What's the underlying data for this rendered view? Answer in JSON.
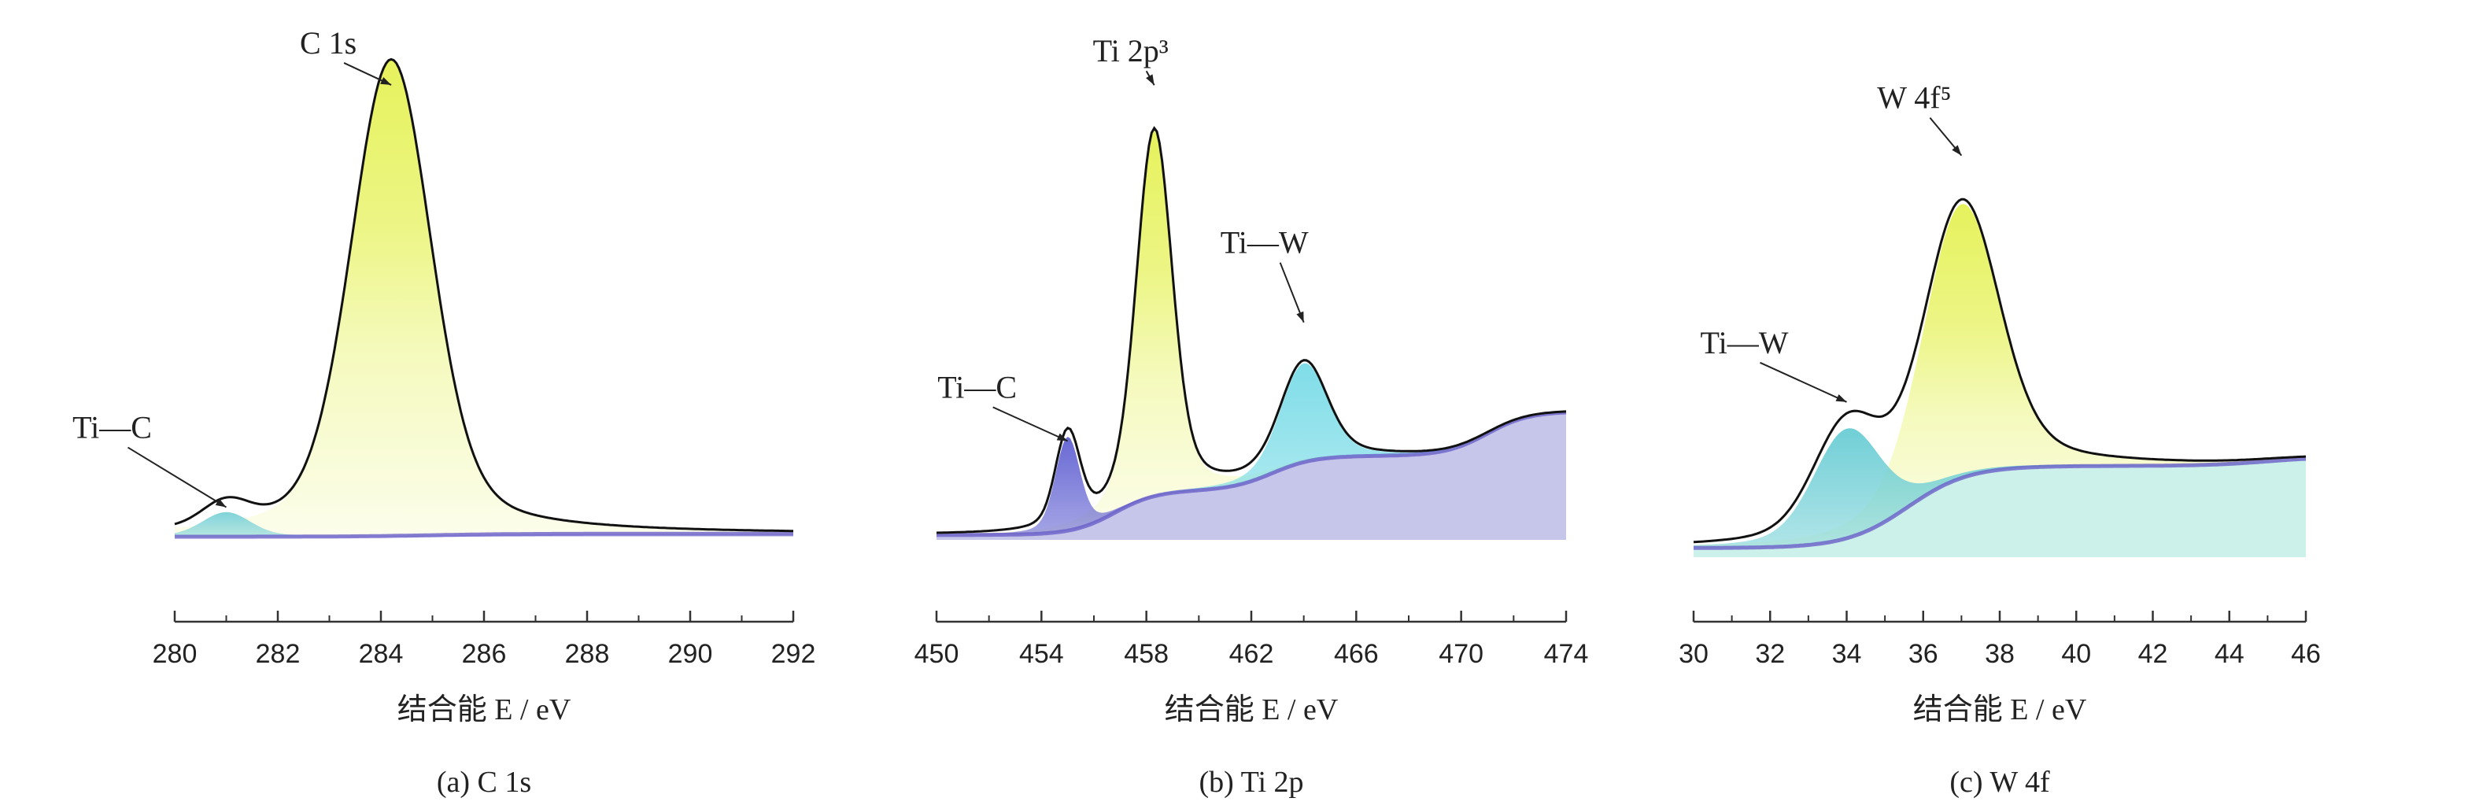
{
  "chart_data": [
    {
      "type": "area",
      "caption": "(a) C 1s",
      "xlabel": "结合能 E / eV",
      "xlim": [
        280,
        292
      ],
      "xticks": [
        280,
        282,
        284,
        286,
        288,
        290,
        292
      ],
      "annotations": [
        {
          "text": "C 1s",
          "x": 284.2,
          "y": 92
        },
        {
          "text": "Ti—C",
          "x": 281.0,
          "y": 6
        }
      ],
      "series": [
        {
          "type": "peak",
          "center": 284.2,
          "height": 97,
          "width": 0.75,
          "color": "#e6f25c",
          "fade": true
        },
        {
          "type": "peak",
          "center": 281.0,
          "height": 5,
          "width": 0.45,
          "color": "#7fd3d8",
          "fade": false
        }
      ],
      "background": {
        "base": 0,
        "steps": [
          [
            285.0,
            0.6
          ]
        ],
        "color": "#8f8fd6"
      },
      "envelope_color": "#111111"
    },
    {
      "type": "area",
      "caption": "(b) Ti 2p",
      "xlabel": "结合能 E / eV",
      "xlim": [
        450,
        474
      ],
      "xticks": [
        450,
        454,
        458,
        462,
        466,
        470,
        474
      ],
      "xtick_labels": [
        "450",
        "454",
        "458",
        "462",
        "466",
        "470",
        "474"
      ],
      "annotations": [
        {
          "text": "Ti 2p³",
          "x": 458.3,
          "y": 92
        },
        {
          "text": "Ti—W",
          "x": 464.0,
          "y": 44
        },
        {
          "text": "Ti—C",
          "x": 455.0,
          "y": 20
        }
      ],
      "series": [
        {
          "type": "peak",
          "center": 458.3,
          "height": 74,
          "width": 0.65,
          "color": "#e6f25c",
          "fade": true
        },
        {
          "type": "peak",
          "center": 464.0,
          "height": 20,
          "width": 0.85,
          "color": "#7fdde8",
          "fade": false
        },
        {
          "type": "peak",
          "center": 455.0,
          "height": 19,
          "width": 0.45,
          "color": "#5a5ad0",
          "fade": false
        }
      ],
      "background": {
        "base": 1,
        "steps": [
          [
            456.8,
            9
          ],
          [
            462.8,
            7
          ],
          [
            471.0,
            9
          ]
        ],
        "color": "#8080d0"
      },
      "envelope_color": "#111111"
    },
    {
      "type": "area",
      "caption": "(c) W 4f",
      "xlabel": "结合能 E / eV",
      "xlim": [
        30,
        46
      ],
      "xticks": [
        30,
        32,
        34,
        36,
        38,
        40,
        42,
        44,
        46
      ],
      "annotations": [
        {
          "text": "W 4f⁵",
          "x": 37.0,
          "y": 88
        },
        {
          "text": "Ti—W",
          "x": 34.0,
          "y": 34
        }
      ],
      "series": [
        {
          "type": "peak",
          "center": 37.0,
          "height": 60,
          "width": 0.95,
          "color": "#e6f25c",
          "fade": true
        },
        {
          "type": "peak",
          "center": 34.0,
          "height": 24,
          "width": 0.85,
          "color": "#70cfd6",
          "fade": false
        }
      ],
      "background": {
        "base": 2,
        "steps": [
          [
            35.6,
            18
          ],
          [
            45.0,
            2
          ]
        ],
        "color": "#8ee0d0"
      },
      "envelope_color": "#111111"
    }
  ]
}
